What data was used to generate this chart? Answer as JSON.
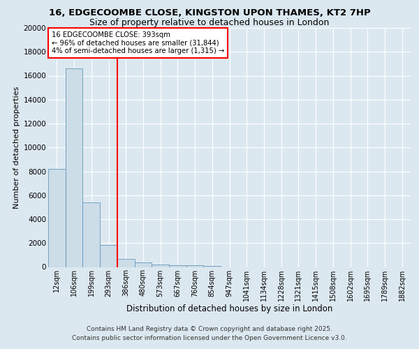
{
  "title": "16, EDGECOOMBE CLOSE, KINGSTON UPON THAMES, KT2 7HP",
  "subtitle": "Size of property relative to detached houses in London",
  "bar_color": "#ccdde8",
  "bar_edge_color": "#6699bb",
  "categories": [
    "12sqm",
    "106sqm",
    "199sqm",
    "293sqm",
    "386sqm",
    "480sqm",
    "573sqm",
    "667sqm",
    "760sqm",
    "854sqm",
    "947sqm",
    "1041sqm",
    "1134sqm",
    "1228sqm",
    "1321sqm",
    "1415sqm",
    "1508sqm",
    "1602sqm",
    "1695sqm",
    "1789sqm",
    "1882sqm"
  ],
  "values": [
    8200,
    16600,
    5400,
    1850,
    680,
    360,
    220,
    160,
    130,
    110,
    0,
    0,
    0,
    0,
    0,
    0,
    0,
    0,
    0,
    0,
    0
  ],
  "ylim": [
    0,
    20000
  ],
  "yticks": [
    0,
    2000,
    4000,
    6000,
    8000,
    10000,
    12000,
    14000,
    16000,
    18000,
    20000
  ],
  "ylabel": "Number of detached properties",
  "xlabel": "Distribution of detached houses by size in London",
  "red_line_x": 3.5,
  "annotation_line1": "16 EDGECOOMBE CLOSE: 393sqm",
  "annotation_line2": "← 96% of detached houses are smaller (31,844)",
  "annotation_line3": "4% of semi-detached houses are larger (1,315) →",
  "footer_line1": "Contains HM Land Registry data © Crown copyright and database right 2025.",
  "footer_line2": "Contains public sector information licensed under the Open Government Licence v3.0.",
  "fig_bg_color": "#dce8f0",
  "plot_bg_color": "#dce8f0"
}
